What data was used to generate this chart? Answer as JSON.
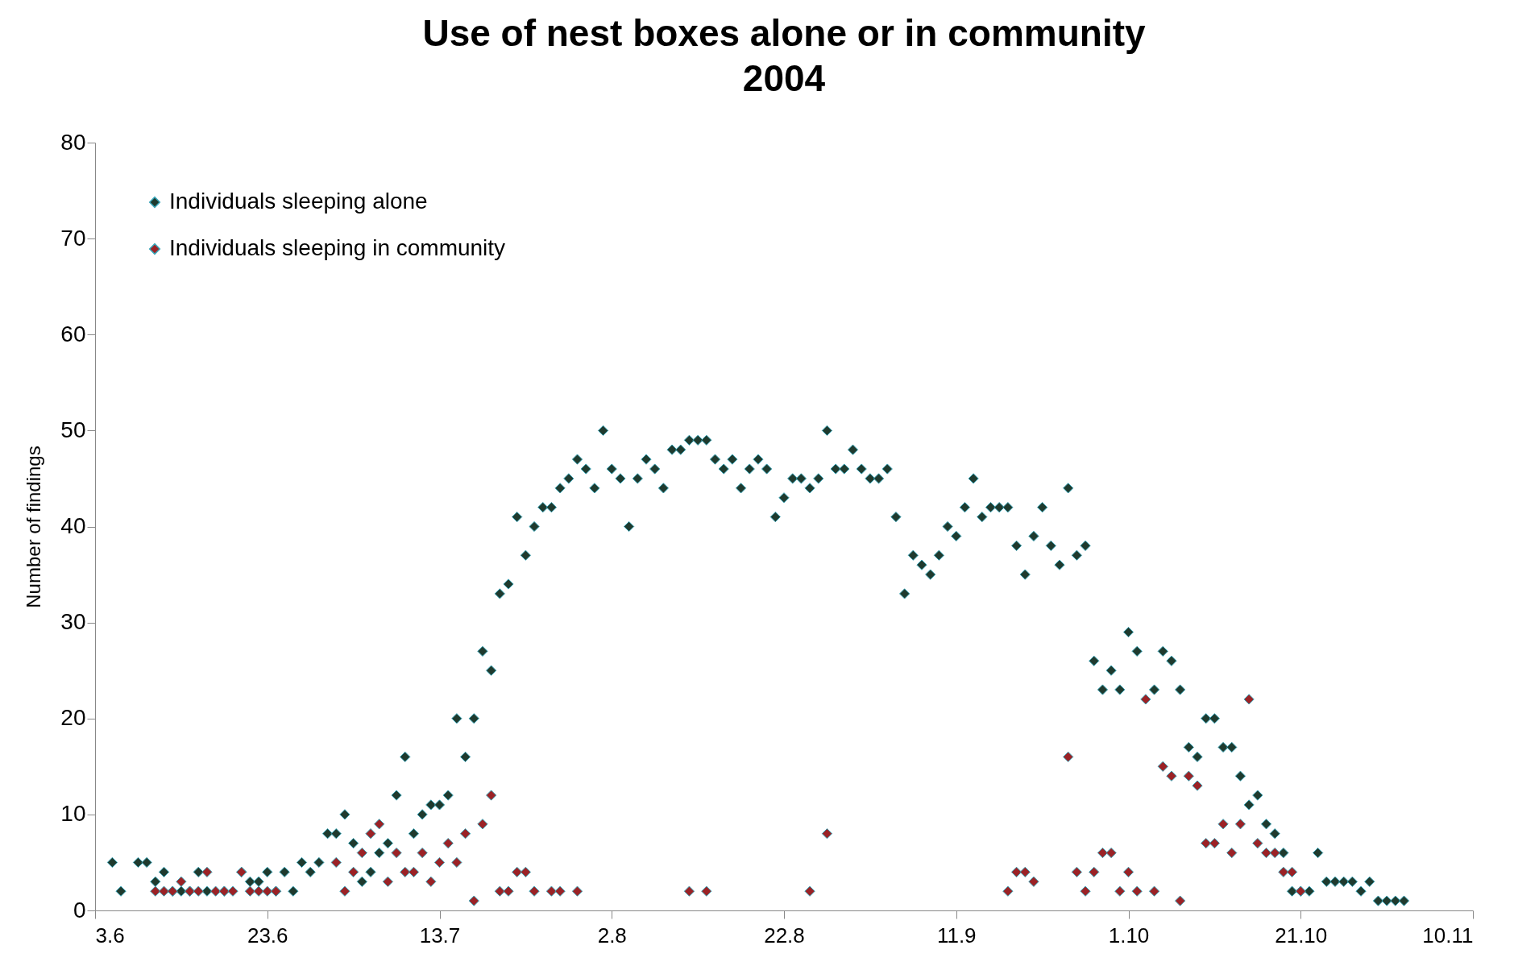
{
  "chart_data": {
    "type": "scatter",
    "title": "Use of nest boxes alone or in community",
    "subtitle": "2004",
    "ylabel": "Number of findings",
    "xlim": [
      "2004-06-03",
      "2004-11-10"
    ],
    "xticks": [
      {
        "value": "2004-06-03",
        "label": "3.6"
      },
      {
        "value": "2004-06-23",
        "label": "23.6"
      },
      {
        "value": "2004-07-13",
        "label": "13.7"
      },
      {
        "value": "2004-08-02",
        "label": "2.8"
      },
      {
        "value": "2004-08-22",
        "label": "22.8"
      },
      {
        "value": "2004-09-11",
        "label": "11.9"
      },
      {
        "value": "2004-10-01",
        "label": "1.10"
      },
      {
        "value": "2004-10-21",
        "label": "21.10"
      },
      {
        "value": "2004-11-10",
        "label": "10.11"
      }
    ],
    "ylim": [
      0,
      80
    ],
    "yticks": [
      0,
      10,
      20,
      30,
      40,
      50,
      60,
      70,
      80
    ],
    "grid": false,
    "legend": "top left",
    "marker": "diamond",
    "series": [
      {
        "name": "Individuals sleeping alone",
        "color": "#1f3a2e",
        "x": [
          "2004-06-05",
          "2004-06-06",
          "2004-06-08",
          "2004-06-09",
          "2004-06-10",
          "2004-06-11",
          "2004-06-12",
          "2004-06-13",
          "2004-06-14",
          "2004-06-15",
          "2004-06-16",
          "2004-06-18",
          "2004-06-20",
          "2004-06-21",
          "2004-06-22",
          "2004-06-23",
          "2004-06-24",
          "2004-06-25",
          "2004-06-26",
          "2004-06-27",
          "2004-06-28",
          "2004-06-29",
          "2004-06-30",
          "2004-07-01",
          "2004-07-02",
          "2004-07-03",
          "2004-07-04",
          "2004-07-05",
          "2004-07-06",
          "2004-07-07",
          "2004-07-08",
          "2004-07-09",
          "2004-07-10",
          "2004-07-11",
          "2004-07-12",
          "2004-07-13",
          "2004-07-14",
          "2004-07-15",
          "2004-07-16",
          "2004-07-17",
          "2004-07-18",
          "2004-07-19",
          "2004-07-20",
          "2004-07-21",
          "2004-07-22",
          "2004-07-23",
          "2004-07-24",
          "2004-07-25",
          "2004-07-26",
          "2004-07-27",
          "2004-07-28",
          "2004-07-29",
          "2004-07-30",
          "2004-07-31",
          "2004-08-01",
          "2004-08-02",
          "2004-08-03",
          "2004-08-04",
          "2004-08-05",
          "2004-08-06",
          "2004-08-07",
          "2004-08-08",
          "2004-08-09",
          "2004-08-10",
          "2004-08-11",
          "2004-08-12",
          "2004-08-13",
          "2004-08-14",
          "2004-08-15",
          "2004-08-16",
          "2004-08-17",
          "2004-08-18",
          "2004-08-19",
          "2004-08-20",
          "2004-08-21",
          "2004-08-22",
          "2004-08-23",
          "2004-08-24",
          "2004-08-25",
          "2004-08-26",
          "2004-08-27",
          "2004-08-28",
          "2004-08-29",
          "2004-08-30",
          "2004-08-31",
          "2004-09-01",
          "2004-09-02",
          "2004-09-03",
          "2004-09-04",
          "2004-09-05",
          "2004-09-06",
          "2004-09-07",
          "2004-09-08",
          "2004-09-09",
          "2004-09-10",
          "2004-09-11",
          "2004-09-12",
          "2004-09-13",
          "2004-09-14",
          "2004-09-15",
          "2004-09-16",
          "2004-09-17",
          "2004-09-18",
          "2004-09-19",
          "2004-09-20",
          "2004-09-21",
          "2004-09-22",
          "2004-09-23",
          "2004-09-24",
          "2004-09-25",
          "2004-09-26",
          "2004-09-27",
          "2004-09-28",
          "2004-09-29",
          "2004-09-30",
          "2004-10-01",
          "2004-10-02",
          "2004-10-04",
          "2004-10-05",
          "2004-10-06",
          "2004-10-07",
          "2004-10-08",
          "2004-10-09",
          "2004-10-10",
          "2004-10-11",
          "2004-10-12",
          "2004-10-13",
          "2004-10-14",
          "2004-10-15",
          "2004-10-16",
          "2004-10-17",
          "2004-10-18",
          "2004-10-19",
          "2004-10-20",
          "2004-10-21",
          "2004-10-22",
          "2004-10-23",
          "2004-10-24",
          "2004-10-25",
          "2004-10-26",
          "2004-10-27",
          "2004-10-28",
          "2004-10-29",
          "2004-10-30",
          "2004-10-31",
          "2004-11-01",
          "2004-11-02"
        ],
        "values": [
          5,
          2,
          5,
          5,
          3,
          4,
          2,
          2,
          2,
          4,
          2,
          2,
          4,
          3,
          3,
          4,
          2,
          4,
          2,
          5,
          4,
          5,
          8,
          8,
          10,
          7,
          3,
          4,
          6,
          7,
          12,
          16,
          8,
          10,
          11,
          11,
          12,
          20,
          16,
          20,
          27,
          25,
          33,
          34,
          41,
          37,
          40,
          42,
          42,
          44,
          45,
          47,
          46,
          44,
          50,
          46,
          45,
          40,
          45,
          47,
          46,
          44,
          48,
          48,
          49,
          49,
          49,
          47,
          46,
          47,
          44,
          46,
          47,
          46,
          41,
          43,
          45,
          45,
          44,
          45,
          50,
          46,
          46,
          48,
          46,
          45,
          45,
          46,
          41,
          33,
          37,
          36,
          35,
          37,
          40,
          39,
          42,
          45,
          41,
          42,
          42,
          42,
          38,
          35,
          39,
          42,
          38,
          36,
          44,
          37,
          38,
          26,
          23,
          25,
          23,
          29,
          27,
          23,
          27,
          26,
          23,
          17,
          16,
          20,
          20,
          17,
          17,
          14,
          11,
          12,
          9,
          8,
          6,
          2,
          2,
          2,
          6,
          3,
          3,
          3,
          3,
          2,
          3,
          1,
          1,
          1,
          1
        ]
      },
      {
        "name": "Individuals sleeping in community",
        "color": "#9b2226",
        "x": [
          "2004-06-10",
          "2004-06-11",
          "2004-06-12",
          "2004-06-13",
          "2004-06-14",
          "2004-06-15",
          "2004-06-16",
          "2004-06-17",
          "2004-06-18",
          "2004-06-19",
          "2004-06-20",
          "2004-06-21",
          "2004-06-22",
          "2004-06-23",
          "2004-06-24",
          "2004-07-01",
          "2004-07-02",
          "2004-07-03",
          "2004-07-04",
          "2004-07-05",
          "2004-07-06",
          "2004-07-07",
          "2004-07-08",
          "2004-07-09",
          "2004-07-10",
          "2004-07-11",
          "2004-07-12",
          "2004-07-13",
          "2004-07-14",
          "2004-07-15",
          "2004-07-16",
          "2004-07-17",
          "2004-07-18",
          "2004-07-19",
          "2004-07-20",
          "2004-07-21",
          "2004-07-22",
          "2004-07-23",
          "2004-07-24",
          "2004-07-26",
          "2004-07-27",
          "2004-07-29",
          "2004-08-11",
          "2004-08-13",
          "2004-08-25",
          "2004-08-27",
          "2004-09-17",
          "2004-09-18",
          "2004-09-19",
          "2004-09-20",
          "2004-09-24",
          "2004-09-25",
          "2004-09-26",
          "2004-09-27",
          "2004-09-28",
          "2004-09-29",
          "2004-09-30",
          "2004-10-01",
          "2004-10-02",
          "2004-10-03",
          "2004-10-04",
          "2004-10-05",
          "2004-10-06",
          "2004-10-07",
          "2004-10-08",
          "2004-10-09",
          "2004-10-10",
          "2004-10-11",
          "2004-10-12",
          "2004-10-13",
          "2004-10-14",
          "2004-10-15",
          "2004-10-16",
          "2004-10-17",
          "2004-10-18",
          "2004-10-19",
          "2004-10-20",
          "2004-10-21"
        ],
        "values": [
          2,
          2,
          2,
          3,
          2,
          2,
          4,
          2,
          2,
          2,
          4,
          2,
          2,
          2,
          2,
          5,
          2,
          4,
          6,
          8,
          9,
          3,
          6,
          4,
          4,
          6,
          3,
          5,
          7,
          5,
          8,
          1,
          9,
          12,
          2,
          2,
          4,
          4,
          2,
          2,
          2,
          2,
          2,
          2,
          2,
          8,
          2,
          4,
          4,
          3,
          16,
          4,
          2,
          4,
          6,
          6,
          2,
          4,
          2,
          22,
          2,
          15,
          14,
          1,
          14,
          13,
          7,
          7,
          9,
          6,
          9,
          22,
          7,
          6,
          6,
          4,
          4,
          2
        ]
      }
    ]
  }
}
